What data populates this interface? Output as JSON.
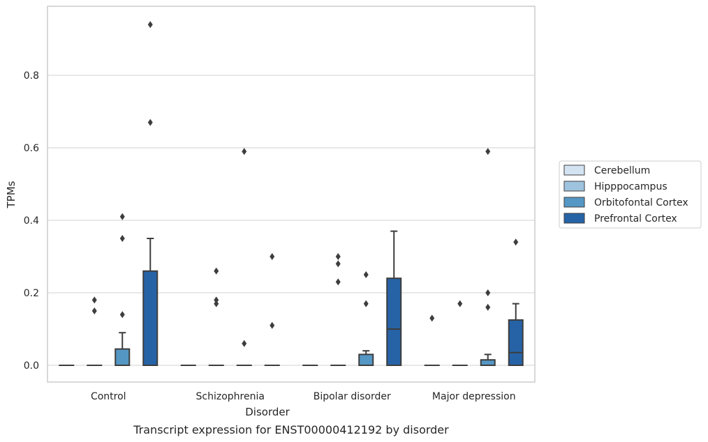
{
  "caption": "Transcript expression for ENST00000412192 by disorder",
  "chart_data": {
    "type": "box",
    "xlabel": "Disorder",
    "ylabel": "TPMs",
    "ylim": [
      -0.045,
      0.99
    ],
    "yticks": [
      0.0,
      0.2,
      0.4,
      0.6,
      0.8
    ],
    "ytick_labels": [
      "0.0",
      "0.2",
      "0.4",
      "0.6",
      "0.8"
    ],
    "grid": "horizontal",
    "legend_position": "right",
    "categories": [
      "Control",
      "Schizophrenia",
      "Bipolar disorder",
      "Major depression"
    ],
    "series": [
      {
        "name": "Cerebellum",
        "color": "#d4e3f1",
        "boxes": [
          {
            "q1": 0,
            "median": 0,
            "q3": 0,
            "whislo": 0,
            "whishi": 0,
            "fliers": []
          },
          {
            "q1": 0,
            "median": 0,
            "q3": 0,
            "whislo": 0,
            "whishi": 0,
            "fliers": []
          },
          {
            "q1": 0,
            "median": 0,
            "q3": 0,
            "whislo": 0,
            "whishi": 0,
            "fliers": []
          },
          {
            "q1": 0,
            "median": 0,
            "q3": 0,
            "whislo": 0,
            "whishi": 0,
            "fliers": [
              0.13
            ]
          }
        ]
      },
      {
        "name": "Hipppocampus",
        "color": "#9ec3de",
        "boxes": [
          {
            "q1": 0,
            "median": 0,
            "q3": 0,
            "whislo": 0,
            "whishi": 0,
            "fliers": [
              0.15,
              0.18
            ]
          },
          {
            "q1": 0,
            "median": 0,
            "q3": 0,
            "whislo": 0,
            "whishi": 0,
            "fliers": [
              0.17,
              0.18,
              0.26
            ]
          },
          {
            "q1": 0,
            "median": 0,
            "q3": 0,
            "whislo": 0,
            "whishi": 0,
            "fliers": [
              0.23,
              0.28,
              0.3
            ]
          },
          {
            "q1": 0,
            "median": 0,
            "q3": 0,
            "whislo": 0,
            "whishi": 0,
            "fliers": [
              0.17
            ]
          }
        ]
      },
      {
        "name": "Orbitofontal Cortex",
        "color": "#5597c4",
        "boxes": [
          {
            "q1": 0,
            "median": 0,
            "q3": 0.045,
            "whislo": 0,
            "whishi": 0.09,
            "fliers": [
              0.14,
              0.35,
              0.41
            ]
          },
          {
            "q1": 0,
            "median": 0,
            "q3": 0,
            "whislo": 0,
            "whishi": 0,
            "fliers": [
              0.06,
              0.59
            ]
          },
          {
            "q1": 0,
            "median": 0,
            "q3": 0.03,
            "whislo": 0,
            "whishi": 0.04,
            "fliers": [
              0.17,
              0.25
            ]
          },
          {
            "q1": 0,
            "median": 0,
            "q3": 0.015,
            "whislo": 0,
            "whishi": 0.03,
            "fliers": [
              0.16,
              0.2,
              0.59
            ]
          }
        ]
      },
      {
        "name": "Prefrontal Cortex",
        "color": "#2663a6",
        "boxes": [
          {
            "q1": 0,
            "median": 0,
            "q3": 0.26,
            "whislo": 0,
            "whishi": 0.35,
            "fliers": [
              0.67,
              0.94
            ]
          },
          {
            "q1": 0,
            "median": 0,
            "q3": 0,
            "whislo": 0,
            "whishi": 0,
            "fliers": [
              0.11,
              0.3
            ]
          },
          {
            "q1": 0,
            "median": 0.1,
            "q3": 0.24,
            "whislo": 0,
            "whishi": 0.37,
            "fliers": []
          },
          {
            "q1": 0,
            "median": 0.035,
            "q3": 0.125,
            "whislo": 0,
            "whishi": 0.17,
            "fliers": [
              0.34
            ]
          }
        ]
      }
    ]
  }
}
